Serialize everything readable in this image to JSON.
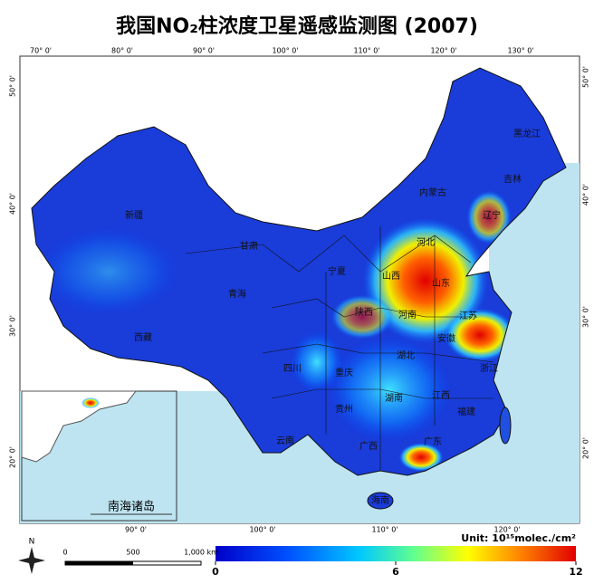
{
  "header": {
    "title": "我国NO₂柱浓度卫星遥感监测图 (2007)"
  },
  "map": {
    "top_lon_labels": [
      "70° 0'",
      "80° 0'",
      "90° 0'",
      "100° 0'",
      "110° 0'",
      "120° 0'",
      "130° 0'"
    ],
    "bottom_lon_labels": [
      "90° 0'",
      "100° 0'",
      "110° 0'",
      "120° 0'"
    ],
    "lat_labels": [
      "50° 0'",
      "40° 0'",
      "30° 0'",
      "20° 0'"
    ],
    "provinces": [
      "新疆",
      "西藏",
      "青海",
      "甘肃",
      "内蒙古",
      "黑龙江",
      "吉林",
      "辽宁",
      "河北",
      "山西",
      "陕西",
      "宁夏",
      "河南",
      "山东",
      "江苏",
      "安徽",
      "湖北",
      "四川",
      "重庆",
      "贵州",
      "云南",
      "湖南",
      "江西",
      "浙江",
      "福建",
      "广西",
      "广东",
      "海南"
    ],
    "inset_label": "南海诸岛",
    "north": "N",
    "scale_bar": [
      "0",
      "500",
      "1,000 km"
    ]
  },
  "colorbar": {
    "unit": "Unit: 10¹⁵molec./cm²",
    "min": 0,
    "max": 12,
    "ticks": [
      0,
      6,
      12
    ]
  }
}
